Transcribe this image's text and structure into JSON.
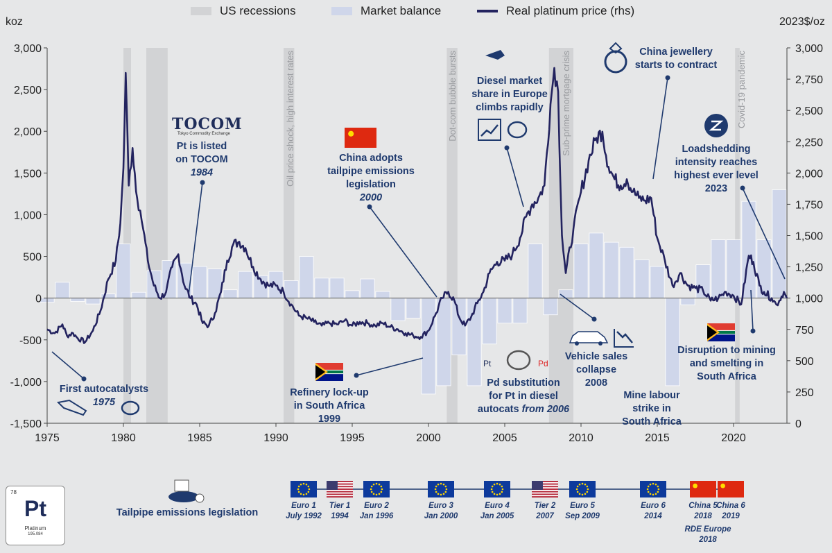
{
  "legend": {
    "recessions": "US recessions",
    "balance": "Market balance",
    "price": "Real platinum price (rhs)"
  },
  "axes": {
    "left_unit": "koz",
    "right_unit": "2023$/oz",
    "left_ticks": [
      "3,000",
      "2,500",
      "2,000",
      "1,500",
      "1,000",
      "500",
      "0",
      "-500",
      "-1,000",
      "-1,500"
    ],
    "right_ticks": [
      "3,000",
      "2,750",
      "2,500",
      "2,250",
      "2,000",
      "1,750",
      "1,500",
      "1,250",
      "1,000",
      "750",
      "500",
      "250",
      "0"
    ],
    "x_ticks": [
      "1975",
      "1980",
      "1985",
      "1990",
      "1995",
      "2000",
      "2005",
      "2010",
      "2015",
      "2020"
    ]
  },
  "colors": {
    "background": "#e6e7e8",
    "recession": "#d2d3d5",
    "bar": "#cfd6ea",
    "line": "#23235f",
    "annotation": "#1f3a6e"
  },
  "event_labels": {
    "oil": "Oil price shock, high interest rates",
    "dotcom": "Dot-com bubble bursts",
    "subprime": "Sub-prime mortgage crisis",
    "covid": "Covid-19 pandemic"
  },
  "annotations": {
    "tocom_logo": "TOCOM",
    "tocom_sub": "Tokyo Commodity Exchange",
    "tocom_l1": "Pt is listed",
    "tocom_l2": "on TOCOM",
    "tocom_year": "1984",
    "china_l1": "China adopts",
    "china_l2": "tailpipe emissions",
    "china_l3": "legislation",
    "china_year": "2000",
    "diesel_l1": "Diesel market",
    "diesel_l2": "share in Europe",
    "diesel_l3": "climbs rapidly",
    "jewel_l1": "China jewellery",
    "jewel_l2": "starts to contract",
    "load_l1": "Loadshedding",
    "load_l2": "intensity reaches",
    "load_l3": "highest ever level",
    "load_year": "2023",
    "auto_l1": "First autocatalysts",
    "auto_year": "1975",
    "refinery_l1": "Refinery lock-up",
    "refinery_l2": "in South Africa",
    "refinery_year": "1999",
    "pd_l1": "Pd substitution",
    "pd_l2": "for Pt in diesel",
    "pd_l3a": "autocats ",
    "pd_l3b": "from 2006",
    "pd_pt": "Pt",
    "pd_pd": "Pd",
    "vehicle_l1": "Vehicle sales",
    "vehicle_l2": "collapse",
    "vehicle_year": "2008",
    "mine_l1": "Mine labour",
    "mine_l2": "strike in",
    "mine_l3": "South Africa",
    "disrupt_l1": "Disruption to mining",
    "disrupt_l2": "and smelting in",
    "disrupt_l3": "South Africa"
  },
  "element": {
    "number": "78",
    "symbol": "Pt",
    "name": "Platinum",
    "mass": "195.084"
  },
  "timeline": {
    "label": "Tailpipe emissions legislation",
    "items": [
      {
        "flag": "eu",
        "l1": "Euro 1",
        "l2": "July 1992"
      },
      {
        "flag": "us",
        "l1": "Tier 1",
        "l2": "1994"
      },
      {
        "flag": "eu",
        "l1": "Euro 2",
        "l2": "Jan 1996"
      },
      {
        "flag": "eu",
        "l1": "Euro 3",
        "l2": "Jan 2000"
      },
      {
        "flag": "eu",
        "l1": "Euro 4",
        "l2": "Jan 2005"
      },
      {
        "flag": "us",
        "l1": "Tier 2",
        "l2": "2007"
      },
      {
        "flag": "eu",
        "l1": "Euro 5",
        "l2": "Sep 2009"
      },
      {
        "flag": "eu",
        "l1": "Euro 6",
        "l2": "2014"
      },
      {
        "flag": "cn",
        "l1": "China 5",
        "l2": "2018"
      },
      {
        "flag": "cn",
        "l1": "China 6",
        "l2": "2019"
      }
    ],
    "rde_l1": "RDE Europe",
    "rde_l2": "2018"
  },
  "chart_data": {
    "type": "bar+line",
    "x_range": [
      1975,
      2023.5
    ],
    "left_axis": {
      "label": "koz",
      "range": [
        -1500,
        3000
      ]
    },
    "right_axis": {
      "label": "2023$/oz",
      "range": [
        0,
        3000
      ]
    },
    "recessions": [
      [
        1980.0,
        1980.5
      ],
      [
        1981.5,
        1982.9
      ],
      [
        1990.5,
        1991.2
      ],
      [
        2001.2,
        2001.9
      ],
      [
        2007.9,
        2009.5
      ],
      [
        2020.1,
        2020.4
      ]
    ],
    "balance_series": {
      "name": "Market balance",
      "years": [
        1975,
        1976,
        1977,
        1978,
        1979,
        1980,
        1981,
        1982,
        1983,
        1984,
        1985,
        1986,
        1987,
        1988,
        1989,
        1990,
        1991,
        1992,
        1993,
        1994,
        1995,
        1996,
        1997,
        1998,
        1999,
        2000,
        2001,
        2002,
        2003,
        2004,
        2005,
        2006,
        2007,
        2008,
        2009,
        2010,
        2011,
        2012,
        2013,
        2014,
        2015,
        2016,
        2017,
        2018,
        2019,
        2020,
        2021,
        2022,
        2023
      ],
      "values": [
        -50,
        190,
        -40,
        -70,
        50,
        650,
        70,
        330,
        450,
        420,
        380,
        350,
        100,
        320,
        270,
        320,
        210,
        500,
        240,
        240,
        90,
        230,
        80,
        -270,
        -240,
        -1150,
        -1050,
        -680,
        -1050,
        -550,
        -300,
        -300,
        650,
        -200,
        100,
        650,
        780,
        670,
        610,
        460,
        380,
        -1050,
        -80,
        400,
        700,
        700,
        1160,
        700,
        1300
      ]
    },
    "price_series": {
      "name": "Real platinum price (rhs)",
      "points": [
        [
          1975,
          750
        ],
        [
          1975.5,
          720
        ],
        [
          1976,
          790
        ],
        [
          1976.3,
          700
        ],
        [
          1976.7,
          720
        ],
        [
          1977,
          680
        ],
        [
          1977.5,
          650
        ],
        [
          1978,
          740
        ],
        [
          1978.5,
          900
        ],
        [
          1979,
          1150
        ],
        [
          1979.5,
          1300
        ],
        [
          1979.8,
          1600
        ],
        [
          1980.0,
          2040
        ],
        [
          1980.15,
          2800
        ],
        [
          1980.35,
          1900
        ],
        [
          1980.6,
          2200
        ],
        [
          1980.9,
          1800
        ],
        [
          1981.1,
          1700
        ],
        [
          1981.3,
          1550
        ],
        [
          1981.6,
          1300
        ],
        [
          1982.0,
          1100
        ],
        [
          1982.4,
          1000
        ],
        [
          1982.8,
          1050
        ],
        [
          1983.2,
          1250
        ],
        [
          1983.6,
          1350
        ],
        [
          1984.0,
          1100
        ],
        [
          1984.4,
          1000
        ],
        [
          1984.8,
          950
        ],
        [
          1985.2,
          800
        ],
        [
          1985.6,
          780
        ],
        [
          1986.0,
          880
        ],
        [
          1986.4,
          1050
        ],
        [
          1986.8,
          1300
        ],
        [
          1987.2,
          1430
        ],
        [
          1987.6,
          1450
        ],
        [
          1988.0,
          1400
        ],
        [
          1988.5,
          1250
        ],
        [
          1989.0,
          1150
        ],
        [
          1989.5,
          1100
        ],
        [
          1990.0,
          1100
        ],
        [
          1990.5,
          1050
        ],
        [
          1991.0,
          950
        ],
        [
          1991.5,
          860
        ],
        [
          1992.0,
          840
        ],
        [
          1992.5,
          810
        ],
        [
          1993.0,
          780
        ],
        [
          1993.5,
          800
        ],
        [
          1994.0,
          790
        ],
        [
          1994.5,
          820
        ],
        [
          1995.0,
          780
        ],
        [
          1995.5,
          810
        ],
        [
          1996.0,
          800
        ],
        [
          1996.5,
          780
        ],
        [
          1997.0,
          800
        ],
        [
          1997.5,
          770
        ],
        [
          1998.0,
          750
        ],
        [
          1998.5,
          720
        ],
        [
          1999.0,
          700
        ],
        [
          1999.5,
          690
        ],
        [
          2000.0,
          740
        ],
        [
          2000.5,
          880
        ],
        [
          2000.9,
          1000
        ],
        [
          2001.3,
          1050
        ],
        [
          2001.7,
          980
        ],
        [
          2002.0,
          850
        ],
        [
          2002.4,
          780
        ],
        [
          2002.8,
          850
        ],
        [
          2003.2,
          960
        ],
        [
          2003.6,
          1050
        ],
        [
          2004.0,
          1200
        ],
        [
          2004.5,
          1290
        ],
        [
          2005.0,
          1300
        ],
        [
          2005.5,
          1350
        ],
        [
          2006.0,
          1480
        ],
        [
          2006.4,
          1650
        ],
        [
          2006.8,
          1750
        ],
        [
          2007.2,
          1800
        ],
        [
          2007.6,
          1900
        ],
        [
          2008.0,
          2550
        ],
        [
          2008.25,
          2840
        ],
        [
          2008.5,
          2650
        ],
        [
          2008.75,
          1500
        ],
        [
          2009.0,
          1200
        ],
        [
          2009.5,
          1550
        ],
        [
          2010.0,
          1850
        ],
        [
          2010.5,
          2100
        ],
        [
          2011.0,
          2280
        ],
        [
          2011.4,
          2330
        ],
        [
          2011.8,
          2050
        ],
        [
          2012.2,
          1950
        ],
        [
          2012.6,
          1900
        ],
        [
          2013.0,
          1950
        ],
        [
          2013.4,
          1850
        ],
        [
          2013.8,
          1800
        ],
        [
          2014.2,
          1780
        ],
        [
          2014.6,
          1800
        ],
        [
          2015.0,
          1480
        ],
        [
          2015.5,
          1300
        ],
        [
          2016.0,
          1100
        ],
        [
          2016.5,
          1200
        ],
        [
          2017.0,
          1100
        ],
        [
          2017.5,
          1080
        ],
        [
          2018.0,
          1060
        ],
        [
          2018.5,
          980
        ],
        [
          2019.0,
          1000
        ],
        [
          2019.5,
          1050
        ],
        [
          2020.0,
          1020
        ],
        [
          2020.5,
          950
        ],
        [
          2021.0,
          1340
        ],
        [
          2021.3,
          1290
        ],
        [
          2021.7,
          1100
        ],
        [
          2022.0,
          1050
        ],
        [
          2022.5,
          1000
        ],
        [
          2022.8,
          950
        ],
        [
          2023.0,
          980
        ],
        [
          2023.3,
          1050
        ],
        [
          2023.5,
          1000
        ]
      ]
    }
  }
}
